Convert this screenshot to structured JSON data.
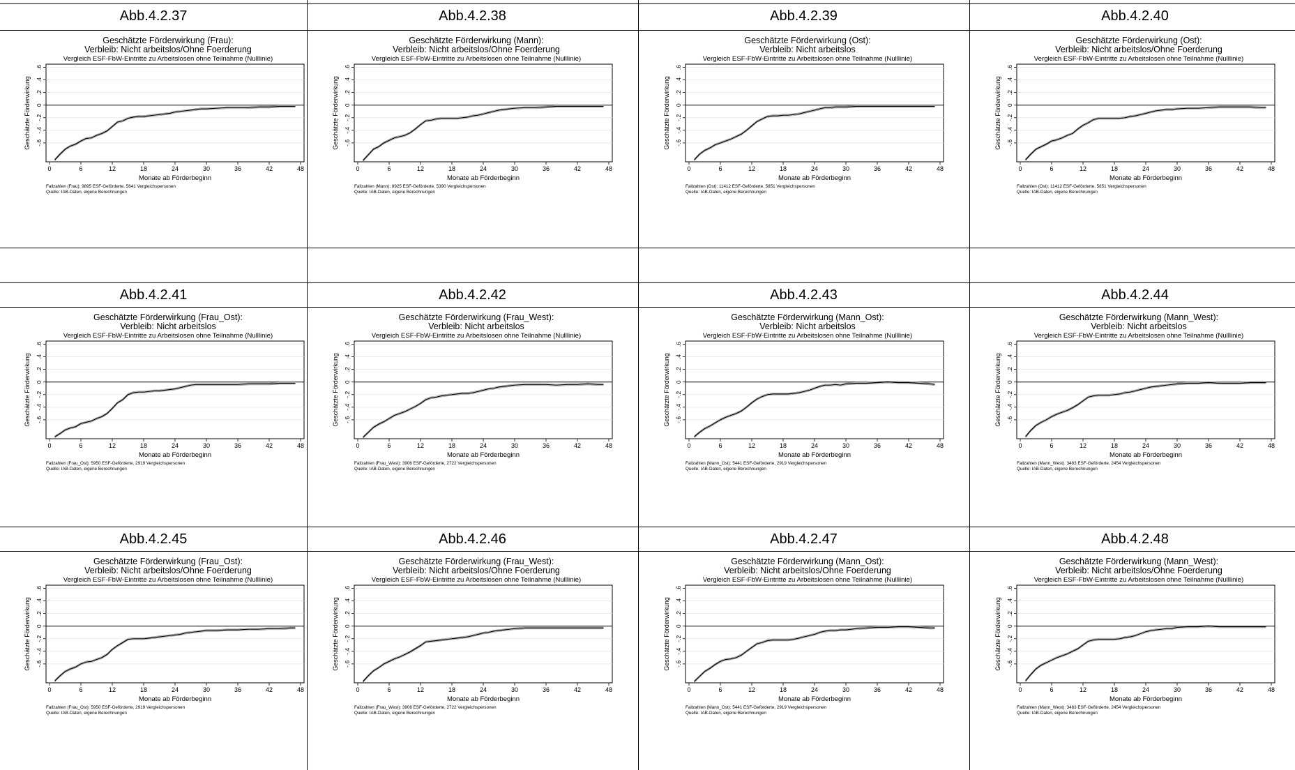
{
  "common": {
    "subtitle": "Vergleich ESF-FbW-Eintritte zu Arbeitslosen ohne Teilnahme (Nulllinie)",
    "xlabel": "Monate ab Förderbeginn",
    "ylabel": "Geschätzte Förderwirkung",
    "source": "Quelle: IAB-Daten, eigene Berechnungen",
    "xticks": [
      "0",
      "6",
      "12",
      "18",
      "24",
      "30",
      "36",
      "42",
      "48"
    ],
    "yticks": [
      ".6",
      ".4",
      ".2",
      "0",
      "-.2",
      "-.4",
      "-.6"
    ],
    "line_color": "#000000"
  },
  "chart_data": [
    {
      "label": "Abb.4.2.37",
      "type": "line",
      "title": "Geschätzte Förderwirkung (Frau):",
      "title2": "Verbleib: Nicht arbeitslos/Ohne Foerderung",
      "subtitle": "Vergleich ESF-FbW-Eintritte zu Arbeitslosen ohne Teilnahme (Nulllinie)",
      "note": "Fallzahlen (Frau): 9895 ESF-Geförderte, 5641 Vergleichspersonen",
      "xlabel": "Monate ab Förderbeginn",
      "ylabel": "Geschätzte Förderwirkung",
      "xlim": [
        0,
        48
      ],
      "ylim": [
        -0.9,
        0.65
      ],
      "x": [
        1,
        2,
        3,
        4,
        5,
        6,
        7,
        8,
        9,
        10,
        11,
        12,
        13,
        14,
        15,
        16,
        17,
        18,
        19,
        20,
        21,
        22,
        23,
        24,
        25,
        26,
        27,
        28,
        29,
        30,
        32,
        34,
        36,
        38,
        40,
        42,
        44,
        46,
        47
      ],
      "y": [
        -0.87,
        -0.78,
        -0.7,
        -0.65,
        -0.62,
        -0.57,
        -0.53,
        -0.52,
        -0.48,
        -0.45,
        -0.41,
        -0.34,
        -0.27,
        -0.25,
        -0.21,
        -0.19,
        -0.18,
        -0.18,
        -0.17,
        -0.16,
        -0.15,
        -0.14,
        -0.13,
        -0.11,
        -0.1,
        -0.09,
        -0.08,
        -0.07,
        -0.06,
        -0.06,
        -0.05,
        -0.04,
        -0.04,
        -0.04,
        -0.03,
        -0.03,
        -0.02,
        -0.02,
        -0.02
      ]
    },
    {
      "label": "Abb.4.2.38",
      "type": "line",
      "title": "Geschätzte Förderwirkung (Mann):",
      "title2": "Verbleib: Nicht arbeitslos/Ohne Foerderung",
      "subtitle": "Vergleich ESF-FbW-Eintritte zu Arbeitslosen ohne Teilnahme (Nulllinie)",
      "note": "Fallzahlen (Mann): 8925 ESF-Geförderte, 5390 Vergleichspersonen",
      "xlabel": "Monate ab Förderbeginn",
      "ylabel": "Geschätzte Förderwirkung",
      "xlim": [
        0,
        48
      ],
      "ylim": [
        -0.9,
        0.65
      ],
      "x": [
        1,
        2,
        3,
        4,
        5,
        6,
        7,
        8,
        9,
        10,
        11,
        12,
        13,
        14,
        15,
        16,
        17,
        18,
        19,
        20,
        21,
        22,
        23,
        24,
        25,
        26,
        27,
        28,
        29,
        30,
        32,
        34,
        36,
        38,
        40,
        42,
        44,
        46,
        47
      ],
      "y": [
        -0.88,
        -0.79,
        -0.7,
        -0.66,
        -0.6,
        -0.56,
        -0.52,
        -0.5,
        -0.48,
        -0.44,
        -0.38,
        -0.31,
        -0.25,
        -0.24,
        -0.22,
        -0.21,
        -0.21,
        -0.21,
        -0.21,
        -0.2,
        -0.19,
        -0.17,
        -0.16,
        -0.14,
        -0.12,
        -0.1,
        -0.08,
        -0.07,
        -0.06,
        -0.05,
        -0.04,
        -0.04,
        -0.03,
        -0.02,
        -0.02,
        -0.02,
        -0.02,
        -0.02,
        -0.02
      ]
    },
    {
      "label": "Abb.4.2.39",
      "type": "line",
      "title": "Geschätzte Förderwirkung (Ost):",
      "title2": "Verbleib: Nicht arbeitslos",
      "subtitle": "Vergleich ESF-FbW-Eintritte zu Arbeitslosen ohne Teilnahme (Nulllinie)",
      "note": "Fallzahlen (Ost): 11412 ESF-Geförderte, 5851 Vergleichspersonen",
      "xlabel": "Monate ab Förderbeginn",
      "ylabel": "Geschätzte Förderwirkung",
      "xlim": [
        0,
        48
      ],
      "ylim": [
        -0.9,
        0.65
      ],
      "x": [
        1,
        2,
        3,
        4,
        5,
        6,
        7,
        8,
        9,
        10,
        11,
        12,
        13,
        14,
        15,
        16,
        17,
        18,
        19,
        20,
        21,
        22,
        23,
        24,
        25,
        26,
        27,
        28,
        29,
        30,
        32,
        34,
        36,
        38,
        40,
        42,
        44,
        46,
        47
      ],
      "y": [
        -0.87,
        -0.78,
        -0.72,
        -0.68,
        -0.63,
        -0.6,
        -0.57,
        -0.54,
        -0.5,
        -0.46,
        -0.4,
        -0.33,
        -0.26,
        -0.22,
        -0.18,
        -0.17,
        -0.17,
        -0.16,
        -0.16,
        -0.15,
        -0.14,
        -0.12,
        -0.1,
        -0.08,
        -0.06,
        -0.04,
        -0.04,
        -0.03,
        -0.03,
        -0.03,
        -0.02,
        -0.02,
        -0.02,
        -0.02,
        -0.02,
        -0.02,
        -0.02,
        -0.02,
        -0.02
      ]
    },
    {
      "label": "Abb.4.2.40",
      "type": "line",
      "title": "Geschätzte Förderwirkung (Ost):",
      "title2": "Verbleib: Nicht arbeitslos/Ohne Foerderung",
      "subtitle": "Vergleich ESF-FbW-Eintritte zu Arbeitslosen ohne Teilnahme (Nulllinie)",
      "note": "Fallzahlen (Ost): 11412 ESF-Geförderte, 5851 Vergleichspersonen",
      "xlabel": "Monate ab Förderbeginn",
      "ylabel": "Geschätzte Förderwirkung",
      "xlim": [
        0,
        48
      ],
      "ylim": [
        -0.9,
        0.65
      ],
      "x": [
        1,
        2,
        3,
        4,
        5,
        6,
        7,
        8,
        9,
        10,
        11,
        12,
        13,
        14,
        15,
        16,
        17,
        18,
        19,
        20,
        21,
        22,
        23,
        24,
        25,
        26,
        27,
        28,
        29,
        30,
        32,
        34,
        36,
        38,
        40,
        42,
        44,
        46,
        47
      ],
      "y": [
        -0.87,
        -0.78,
        -0.7,
        -0.66,
        -0.62,
        -0.57,
        -0.55,
        -0.52,
        -0.48,
        -0.45,
        -0.38,
        -0.32,
        -0.28,
        -0.23,
        -0.21,
        -0.21,
        -0.21,
        -0.21,
        -0.21,
        -0.2,
        -0.18,
        -0.17,
        -0.15,
        -0.13,
        -0.11,
        -0.09,
        -0.08,
        -0.07,
        -0.07,
        -0.06,
        -0.05,
        -0.05,
        -0.04,
        -0.03,
        -0.03,
        -0.03,
        -0.03,
        -0.04,
        -0.04
      ]
    },
    {
      "label": "Abb.4.2.41",
      "type": "line",
      "title": "Geschätzte Förderwirkung (Frau_Ost):",
      "title2": "Verbleib: Nicht arbeitslos",
      "subtitle": "Vergleich ESF-FbW-Eintritte zu Arbeitslosen ohne Teilnahme (Nulllinie)",
      "note": "Fallzahlen (Frau_Ost): 5950 ESF-Geförderte, 2919 Vergleichspersonen",
      "xlabel": "Monate ab Förderbeginn",
      "ylabel": "Geschätzte Förderwirkung",
      "xlim": [
        0,
        48
      ],
      "ylim": [
        -0.9,
        0.65
      ],
      "x": [
        1,
        2,
        3,
        4,
        5,
        6,
        7,
        8,
        9,
        10,
        11,
        12,
        13,
        14,
        15,
        16,
        17,
        18,
        19,
        20,
        21,
        22,
        23,
        24,
        25,
        26,
        27,
        28,
        29,
        30,
        32,
        34,
        36,
        38,
        40,
        42,
        44,
        46,
        47
      ],
      "y": [
        -0.87,
        -0.82,
        -0.76,
        -0.73,
        -0.71,
        -0.66,
        -0.64,
        -0.62,
        -0.58,
        -0.55,
        -0.5,
        -0.42,
        -0.33,
        -0.28,
        -0.2,
        -0.17,
        -0.16,
        -0.16,
        -0.15,
        -0.14,
        -0.14,
        -0.13,
        -0.12,
        -0.11,
        -0.09,
        -0.07,
        -0.05,
        -0.04,
        -0.04,
        -0.04,
        -0.04,
        -0.04,
        -0.04,
        -0.03,
        -0.03,
        -0.03,
        -0.02,
        -0.02,
        -0.02
      ]
    },
    {
      "label": "Abb.4.2.42",
      "type": "line",
      "title": "Geschätzte Förderwirkung (Frau_West):",
      "title2": "Verbleib: Nicht arbeitslos",
      "subtitle": "Vergleich ESF-FbW-Eintritte zu Arbeitslosen ohne Teilnahme (Nulllinie)",
      "note": "Fallzahlen (Frau_West): 3906 ESF-Geförderte, 2722 Vergleichspersonen",
      "xlabel": "Monate ab Förderbeginn",
      "ylabel": "Geschätzte Förderwirkung",
      "xlim": [
        0,
        48
      ],
      "ylim": [
        -0.9,
        0.65
      ],
      "x": [
        1,
        2,
        3,
        4,
        5,
        6,
        7,
        8,
        9,
        10,
        11,
        12,
        13,
        14,
        15,
        16,
        17,
        18,
        19,
        20,
        21,
        22,
        23,
        24,
        25,
        26,
        27,
        28,
        29,
        30,
        32,
        34,
        36,
        38,
        40,
        42,
        44,
        46,
        47
      ],
      "y": [
        -0.88,
        -0.8,
        -0.72,
        -0.67,
        -0.63,
        -0.58,
        -0.53,
        -0.5,
        -0.47,
        -0.43,
        -0.39,
        -0.34,
        -0.28,
        -0.25,
        -0.24,
        -0.22,
        -0.21,
        -0.2,
        -0.19,
        -0.18,
        -0.18,
        -0.17,
        -0.15,
        -0.13,
        -0.11,
        -0.1,
        -0.08,
        -0.07,
        -0.06,
        -0.05,
        -0.04,
        -0.04,
        -0.04,
        -0.05,
        -0.04,
        -0.04,
        -0.03,
        -0.04,
        -0.04
      ]
    },
    {
      "label": "Abb.4.2.43",
      "type": "line",
      "title": "Geschätzte Förderwirkung (Mann_Ost):",
      "title2": "Verbleib: Nicht arbeitslos",
      "subtitle": "Vergleich ESF-FbW-Eintritte zu Arbeitslosen ohne Teilnahme (Nulllinie)",
      "note": "Fallzahlen (Mann_Ost): 5441 ESF-Geförderte, 2919 Vergleichspersonen",
      "xlabel": "Monate ab Förderbeginn",
      "ylabel": "Geschätzte Förderwirkung",
      "xlim": [
        0,
        48
      ],
      "ylim": [
        -0.9,
        0.65
      ],
      "x": [
        1,
        2,
        3,
        4,
        5,
        6,
        7,
        8,
        9,
        10,
        11,
        12,
        13,
        14,
        15,
        16,
        17,
        18,
        19,
        20,
        21,
        22,
        23,
        24,
        25,
        26,
        27,
        28,
        29,
        30,
        32,
        34,
        36,
        38,
        40,
        42,
        44,
        46,
        47
      ],
      "y": [
        -0.87,
        -0.8,
        -0.74,
        -0.7,
        -0.65,
        -0.6,
        -0.56,
        -0.53,
        -0.5,
        -0.46,
        -0.4,
        -0.33,
        -0.27,
        -0.23,
        -0.2,
        -0.19,
        -0.19,
        -0.19,
        -0.19,
        -0.18,
        -0.17,
        -0.15,
        -0.13,
        -0.1,
        -0.07,
        -0.05,
        -0.05,
        -0.04,
        -0.05,
        -0.03,
        -0.02,
        -0.02,
        -0.01,
        0.0,
        -0.01,
        -0.01,
        -0.02,
        -0.03,
        -0.04
      ]
    },
    {
      "label": "Abb.4.2.44",
      "type": "line",
      "title": "Geschätzte Förderwirkung (Mann_West):",
      "title2": "Verbleib: Nicht arbeitslos",
      "subtitle": "Vergleich ESF-FbW-Eintritte zu Arbeitslosen ohne Teilnahme (Nulllinie)",
      "note": "Fallzahlen (Mann_West): 3483 ESF-Geförderte, 2454 Vergleichspersonen",
      "xlabel": "Monate ab Förderbeginn",
      "ylabel": "Geschätzte Förderwirkung",
      "xlim": [
        0,
        48
      ],
      "ylim": [
        -0.9,
        0.65
      ],
      "x": [
        1,
        2,
        3,
        4,
        5,
        6,
        7,
        8,
        9,
        10,
        11,
        12,
        13,
        14,
        15,
        16,
        17,
        18,
        19,
        20,
        21,
        22,
        23,
        24,
        25,
        26,
        27,
        28,
        29,
        30,
        32,
        34,
        36,
        38,
        40,
        42,
        44,
        46,
        47
      ],
      "y": [
        -0.87,
        -0.77,
        -0.69,
        -0.64,
        -0.6,
        -0.55,
        -0.51,
        -0.48,
        -0.45,
        -0.41,
        -0.36,
        -0.3,
        -0.24,
        -0.22,
        -0.21,
        -0.21,
        -0.21,
        -0.2,
        -0.19,
        -0.17,
        -0.16,
        -0.14,
        -0.12,
        -0.1,
        -0.08,
        -0.07,
        -0.06,
        -0.05,
        -0.04,
        -0.03,
        -0.02,
        -0.02,
        -0.01,
        -0.02,
        -0.02,
        -0.02,
        -0.01,
        -0.01,
        -0.01
      ]
    },
    {
      "label": "Abb.4.2.45",
      "type": "line",
      "title": "Geschätzte Förderwirkung (Frau_Ost):",
      "title2": "Verbleib: Nicht arbeitslos/Ohne Foerderung",
      "subtitle": "Vergleich ESF-FbW-Eintritte zu Arbeitslosen ohne Teilnahme (Nulllinie)",
      "note": "Fallzahlen (Frau_Ost): 5950 ESF-Geförderte, 2919 Vergleichspersonen",
      "xlabel": "Monate ab Förderbeginn",
      "ylabel": "Geschätzte Förderwirkung",
      "xlim": [
        0,
        48
      ],
      "ylim": [
        -0.9,
        0.65
      ],
      "x": [
        1,
        2,
        3,
        4,
        5,
        6,
        7,
        8,
        9,
        10,
        11,
        12,
        13,
        14,
        15,
        16,
        17,
        18,
        19,
        20,
        21,
        22,
        23,
        24,
        25,
        26,
        27,
        28,
        29,
        30,
        32,
        34,
        36,
        38,
        40,
        42,
        44,
        46,
        47
      ],
      "y": [
        -0.87,
        -0.79,
        -0.72,
        -0.68,
        -0.65,
        -0.6,
        -0.57,
        -0.56,
        -0.53,
        -0.5,
        -0.45,
        -0.37,
        -0.31,
        -0.26,
        -0.21,
        -0.2,
        -0.2,
        -0.2,
        -0.19,
        -0.18,
        -0.17,
        -0.16,
        -0.15,
        -0.14,
        -0.13,
        -0.11,
        -0.1,
        -0.09,
        -0.08,
        -0.07,
        -0.07,
        -0.06,
        -0.06,
        -0.05,
        -0.05,
        -0.04,
        -0.04,
        -0.03,
        -0.03
      ]
    },
    {
      "label": "Abb.4.2.46",
      "type": "line",
      "title": "Geschätzte Förderwirkung (Frau_West):",
      "title2": "Verbleib: Nicht arbeitslos/Ohne Foerderung",
      "subtitle": "Vergleich ESF-FbW-Eintritte zu Arbeitslosen ohne Teilnahme (Nulllinie)",
      "note": "Fallzahlen (Frau_West): 3906 ESF-Geförderte, 2722 Vergleichspersonen",
      "xlabel": "Monate ab Förderbeginn",
      "ylabel": "Geschätzte Förderwirkung",
      "xlim": [
        0,
        48
      ],
      "ylim": [
        -0.9,
        0.65
      ],
      "x": [
        1,
        2,
        3,
        4,
        5,
        6,
        7,
        8,
        9,
        10,
        11,
        12,
        13,
        14,
        15,
        16,
        17,
        18,
        19,
        20,
        21,
        22,
        23,
        24,
        25,
        26,
        27,
        28,
        29,
        30,
        32,
        34,
        36,
        38,
        40,
        42,
        44,
        46,
        47
      ],
      "y": [
        -0.88,
        -0.79,
        -0.71,
        -0.66,
        -0.6,
        -0.56,
        -0.52,
        -0.49,
        -0.45,
        -0.41,
        -0.36,
        -0.31,
        -0.25,
        -0.24,
        -0.23,
        -0.22,
        -0.21,
        -0.2,
        -0.19,
        -0.18,
        -0.17,
        -0.15,
        -0.13,
        -0.11,
        -0.1,
        -0.08,
        -0.07,
        -0.06,
        -0.05,
        -0.04,
        -0.03,
        -0.03,
        -0.03,
        -0.03,
        -0.03,
        -0.03,
        -0.03,
        -0.03,
        -0.03
      ]
    },
    {
      "label": "Abb.4.2.47",
      "type": "line",
      "title": "Geschätzte Förderwirkung (Mann_Ost):",
      "title2": "Verbleib: Nicht arbeitslos/Ohne Foerderung",
      "subtitle": "Vergleich ESF-FbW-Eintritte zu Arbeitslosen ohne Teilnahme (Nulllinie)",
      "note": "Fallzahlen (Mann_Ost): 5441 ESF-Geförderte, 2919 Vergleichspersonen",
      "xlabel": "Monate ab Förderbeginn",
      "ylabel": "Geschätzte Förderwirkung",
      "xlim": [
        0,
        48
      ],
      "ylim": [
        -0.9,
        0.65
      ],
      "x": [
        1,
        2,
        3,
        4,
        5,
        6,
        7,
        8,
        9,
        10,
        11,
        12,
        13,
        14,
        15,
        16,
        17,
        18,
        19,
        20,
        21,
        22,
        23,
        24,
        25,
        26,
        27,
        28,
        29,
        30,
        32,
        34,
        36,
        38,
        40,
        42,
        44,
        46,
        47
      ],
      "y": [
        -0.88,
        -0.8,
        -0.72,
        -0.67,
        -0.61,
        -0.56,
        -0.53,
        -0.52,
        -0.5,
        -0.46,
        -0.4,
        -0.34,
        -0.28,
        -0.26,
        -0.23,
        -0.22,
        -0.22,
        -0.22,
        -0.22,
        -0.21,
        -0.19,
        -0.17,
        -0.15,
        -0.13,
        -0.1,
        -0.08,
        -0.07,
        -0.07,
        -0.06,
        -0.06,
        -0.04,
        -0.03,
        -0.02,
        -0.02,
        -0.01,
        -0.01,
        -0.02,
        -0.03,
        -0.03
      ]
    },
    {
      "label": "Abb.4.2.48",
      "type": "line",
      "title": "Geschätzte Förderwirkung (Mann_West):",
      "title2": "Verbleib: Nicht arbeitslos/Ohne Foerderung",
      "subtitle": "Vergleich ESF-FbW-Eintritte zu Arbeitslosen ohne Teilnahme (Nulllinie)",
      "note": "Fallzahlen (Mann_West): 3483 ESF-Geförderte, 2454 Vergleichspersonen",
      "xlabel": "Monate ab Förderbeginn",
      "ylabel": "Geschätzte Förderwirkung",
      "xlim": [
        0,
        48
      ],
      "ylim": [
        -0.9,
        0.65
      ],
      "x": [
        1,
        2,
        3,
        4,
        5,
        6,
        7,
        8,
        9,
        10,
        11,
        12,
        13,
        14,
        15,
        16,
        17,
        18,
        19,
        20,
        21,
        22,
        23,
        24,
        25,
        26,
        27,
        28,
        29,
        30,
        32,
        34,
        36,
        38,
        40,
        42,
        44,
        46,
        47
      ],
      "y": [
        -0.87,
        -0.77,
        -0.68,
        -0.62,
        -0.58,
        -0.54,
        -0.5,
        -0.47,
        -0.44,
        -0.4,
        -0.36,
        -0.3,
        -0.24,
        -0.22,
        -0.21,
        -0.21,
        -0.21,
        -0.21,
        -0.2,
        -0.18,
        -0.17,
        -0.15,
        -0.12,
        -0.09,
        -0.07,
        -0.06,
        -0.05,
        -0.04,
        -0.04,
        -0.02,
        -0.01,
        -0.01,
        0.0,
        -0.01,
        -0.01,
        -0.01,
        -0.01,
        -0.01,
        -0.01
      ]
    }
  ]
}
